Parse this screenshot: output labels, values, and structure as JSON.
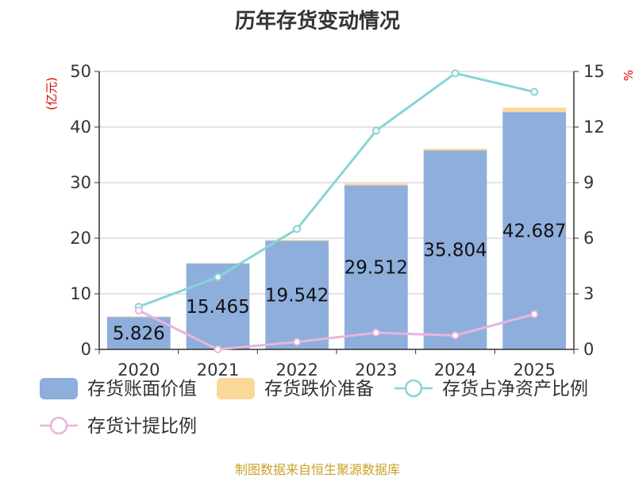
{
  "chart_data": {
    "type": "bar",
    "title": "历年存货变动情况",
    "categories": [
      "2020",
      "2021",
      "2022",
      "2023",
      "2024",
      "2025"
    ],
    "series": [
      {
        "name": "存货账面价值",
        "type": "bar",
        "axis": "left",
        "color": "#8eaedc",
        "values": [
          5.826,
          15.465,
          19.542,
          29.512,
          35.804,
          42.687
        ]
      },
      {
        "name": "存货跌价准备",
        "type": "bar",
        "axis": "left",
        "stacked": true,
        "color": "#fbd79a",
        "values": [
          0.1,
          0.05,
          0.15,
          0.3,
          0.3,
          0.8
        ]
      },
      {
        "name": "存货占净资产比例",
        "type": "line",
        "axis": "right",
        "color": "#88d4d6",
        "values": [
          2.3,
          3.9,
          6.5,
          11.8,
          14.9,
          13.9
        ]
      },
      {
        "name": "存货计提比例",
        "type": "line",
        "axis": "right",
        "color": "#e8b5db",
        "values": [
          2.1,
          0.0,
          0.4,
          0.9,
          0.75,
          1.9
        ]
      }
    ],
    "bar_labels": [
      "5.826",
      "15.465",
      "19.542",
      "29.512",
      "35.804",
      "42.687"
    ],
    "ylabel_left": "(亿元)",
    "ylabel_right": "%",
    "ylim_left": [
      0,
      50
    ],
    "ylim_right": [
      0,
      15
    ],
    "yticks_left": [
      "0",
      "10",
      "20",
      "30",
      "40",
      "50"
    ],
    "yticks_right": [
      "0",
      "3",
      "6",
      "9",
      "12",
      "15"
    ],
    "grid": true,
    "legend_position": "bottom"
  },
  "source": "制图数据来自恒生聚源数据库"
}
